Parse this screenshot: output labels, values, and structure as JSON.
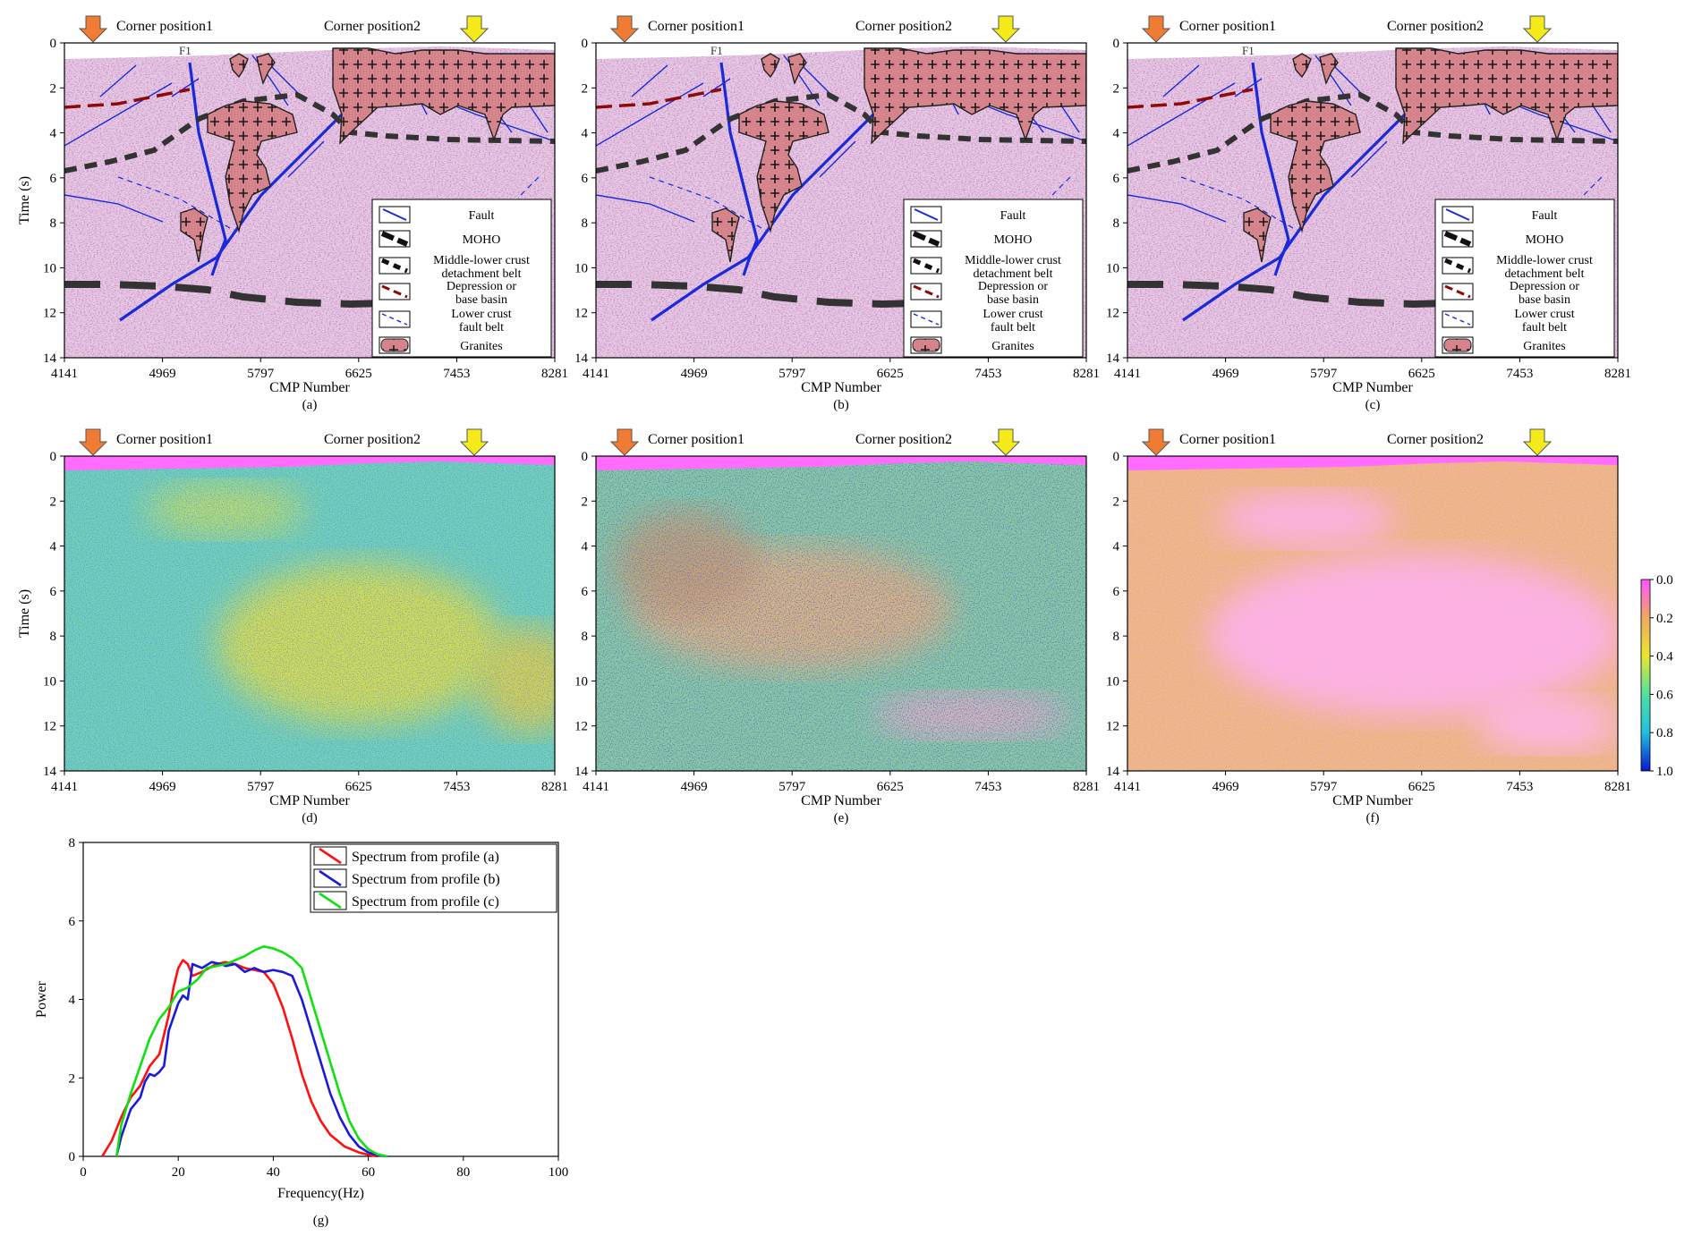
{
  "shared": {
    "corner_position_1": "Corner position1",
    "corner_position_2": "Corner position2",
    "x_label": "CMP Number",
    "y_label_time": "Time (s)",
    "x_ticks": [
      "4141",
      "4969",
      "5797",
      "6625",
      "7453",
      "8281"
    ],
    "y_ticks": [
      "0",
      "2",
      "4",
      "6",
      "8",
      "10",
      "12",
      "14"
    ],
    "fault_label": "F1",
    "arrow_colors": {
      "corner1": "#f07c34",
      "corner2": "#f5ea1a"
    }
  },
  "legend": [
    {
      "id": "fault",
      "lines": [
        "Fault"
      ],
      "icon": "fault-line-icon"
    },
    {
      "id": "moho",
      "lines": [
        "MOHO"
      ],
      "icon": "moho-dash-icon"
    },
    {
      "id": "detachment",
      "lines": [
        "Middle-lower crust",
        "detachment belt"
      ],
      "icon": "detachment-dash-icon"
    },
    {
      "id": "depression",
      "lines": [
        "Depression or",
        "base basin"
      ],
      "icon": "depression-dash-icon"
    },
    {
      "id": "lowercrust",
      "lines": [
        "Lower crust",
        "fault belt"
      ],
      "icon": "lower-crust-dash-icon"
    },
    {
      "id": "granites",
      "lines": [
        "Granites"
      ],
      "icon": "granite-pattern-icon"
    }
  ],
  "panels": [
    {
      "id": "a",
      "caption": "(a)"
    },
    {
      "id": "b",
      "caption": "(b)"
    },
    {
      "id": "c",
      "caption": "(c)"
    },
    {
      "id": "d",
      "caption": "(d)"
    },
    {
      "id": "e",
      "caption": "(e)"
    },
    {
      "id": "f",
      "caption": "(f)"
    }
  ],
  "colorbar": {
    "ticks": [
      "0.0",
      "0.2",
      "0.4",
      "0.6",
      "0.8",
      "1.0"
    ],
    "colors": [
      "#ff55ff",
      "#f0a860",
      "#e8e830",
      "#50e0a0",
      "#20c0e0",
      "#0a18d0"
    ]
  },
  "chart_data": {
    "type": "line",
    "caption": "(g)",
    "xlabel": "Frequency(Hz)",
    "ylabel": "Power",
    "xlim": [
      0,
      100
    ],
    "ylim": [
      0,
      8
    ],
    "x_ticks": [
      "0",
      "20",
      "40",
      "60",
      "80",
      "100"
    ],
    "y_ticks": [
      "0",
      "2",
      "4",
      "6",
      "8"
    ],
    "legend_position": "top-right",
    "series": [
      {
        "name": "Spectrum from profile (a)",
        "color": "#ff1010",
        "x": [
          4,
          6,
          8,
          10,
          12,
          14,
          16,
          18,
          19,
          20,
          21,
          22,
          23,
          25,
          28,
          30,
          32,
          34,
          36,
          38,
          40,
          42,
          44,
          46,
          48,
          50,
          52,
          55,
          58,
          60,
          62
        ],
        "y": [
          0,
          0.4,
          1.0,
          1.5,
          1.8,
          2.3,
          2.6,
          3.6,
          4.3,
          4.8,
          5.0,
          4.9,
          4.6,
          4.7,
          4.9,
          4.95,
          4.9,
          4.8,
          4.75,
          4.7,
          4.4,
          3.8,
          3.0,
          2.1,
          1.4,
          0.9,
          0.55,
          0.25,
          0.1,
          0.04,
          0
        ]
      },
      {
        "name": "Spectrum from profile (b)",
        "color": "#1a1adc",
        "x": [
          7,
          8,
          10,
          12,
          13,
          14,
          15,
          16,
          17,
          18,
          20,
          21,
          22,
          23,
          25,
          27,
          29,
          30,
          32,
          34,
          36,
          38,
          40,
          42,
          44,
          46,
          48,
          50,
          52,
          54,
          56,
          58,
          60,
          62,
          64
        ],
        "y": [
          0,
          0.5,
          1.2,
          1.5,
          1.9,
          2.1,
          2.05,
          2.15,
          2.3,
          3.2,
          3.9,
          4.1,
          4.0,
          4.9,
          4.8,
          4.95,
          4.9,
          4.85,
          4.9,
          4.7,
          4.8,
          4.7,
          4.75,
          4.7,
          4.6,
          4.0,
          3.2,
          2.4,
          1.6,
          1.0,
          0.55,
          0.25,
          0.1,
          0.03,
          0
        ]
      },
      {
        "name": "Spectrum from profile (c)",
        "color": "#10e010",
        "x": [
          7,
          8,
          10,
          12,
          14,
          16,
          18,
          20,
          22,
          24,
          26,
          28,
          30,
          32,
          34,
          36,
          38,
          40,
          42,
          44,
          46,
          48,
          50,
          52,
          54,
          56,
          58,
          60,
          62,
          64
        ],
        "y": [
          0,
          0.8,
          1.6,
          2.3,
          3.0,
          3.5,
          3.8,
          4.2,
          4.3,
          4.5,
          4.8,
          4.85,
          4.9,
          5.0,
          5.1,
          5.25,
          5.35,
          5.3,
          5.2,
          5.05,
          4.8,
          4.0,
          3.2,
          2.4,
          1.6,
          0.9,
          0.45,
          0.18,
          0.05,
          0
        ]
      }
    ]
  }
}
